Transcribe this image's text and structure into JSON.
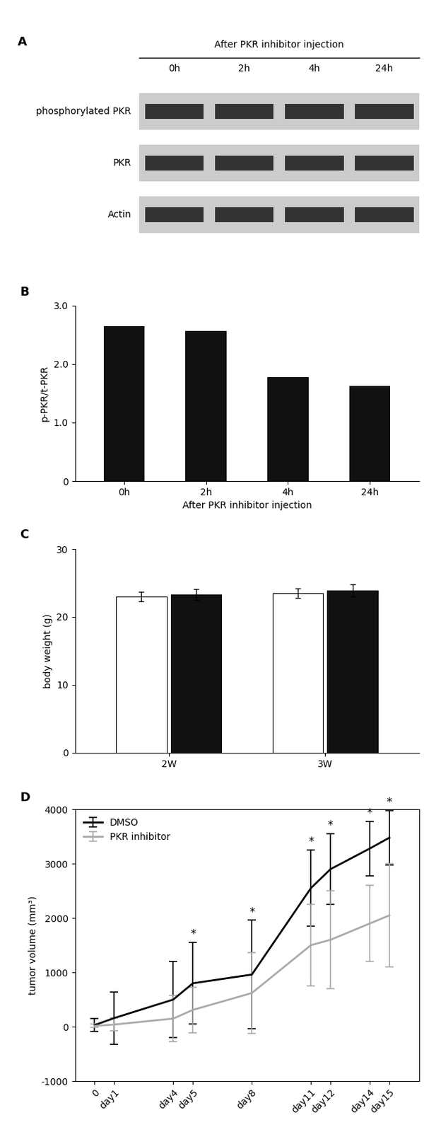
{
  "chart_data": [
    {
      "type": "blot",
      "panel": "A",
      "title": "After PKR inhibitor injection",
      "categories": [
        "0h",
        "2h",
        "4h",
        "24h"
      ],
      "rows": [
        "phosphorylated PKR",
        "PKR",
        "Actin"
      ]
    },
    {
      "type": "bar",
      "panel": "B",
      "categories": [
        "0h",
        "2h",
        "4h",
        "24h"
      ],
      "values": [
        2.65,
        2.57,
        1.78,
        1.63
      ],
      "color": "#111111",
      "ylabel": "p-PKR/t-PKR",
      "xlabel": "After PKR inhibitor injection",
      "ylim": [
        0,
        3.0
      ],
      "yticks": [
        0,
        {
          "value": 1.0,
          "label": "1.0"
        },
        {
          "value": 2.0,
          "label": "2.0"
        },
        {
          "value": 3.0,
          "label": "3.0"
        }
      ]
    },
    {
      "type": "bar",
      "panel": "C",
      "categories": [
        "2W",
        "3W"
      ],
      "series": [
        {
          "color": "#ffffff",
          "values": [
            23.0,
            23.5
          ],
          "errors": [
            0.7,
            0.7
          ]
        },
        {
          "color": "#111111",
          "values": [
            23.3,
            23.9
          ],
          "errors": [
            0.8,
            0.9
          ]
        }
      ],
      "ylabel": "body weight (g)",
      "ylim": [
        0,
        30
      ],
      "yticks": [
        0,
        10,
        20,
        30
      ]
    },
    {
      "type": "line",
      "panel": "D",
      "x": [
        0,
        1,
        4,
        5,
        8,
        11,
        12,
        14,
        15
      ],
      "series": [
        {
          "name": "DMSO",
          "color": "#000000",
          "values": [
            30,
            160,
            500,
            800,
            960,
            2550,
            2900,
            3280,
            3480
          ],
          "errors": [
            120,
            480,
            700,
            750,
            1000,
            700,
            650,
            500,
            500
          ]
        },
        {
          "name": "PKR inhibitor",
          "color": "#aaaaaa",
          "values": [
            15,
            40,
            150,
            310,
            620,
            1500,
            1600,
            1900,
            2050
          ],
          "errors": [
            30,
            120,
            420,
            420,
            750,
            750,
            900,
            700,
            950
          ]
        }
      ],
      "ylabel": "tumor volume (mm³)",
      "xlim": [
        -1.0,
        16.5
      ],
      "xticks": [
        0,
        {
          "value": 1,
          "label": "day1"
        },
        {
          "value": 4,
          "label": "day4"
        },
        {
          "value": 5,
          "label": "day5"
        },
        {
          "value": 8,
          "label": "day8"
        },
        {
          "value": 11,
          "label": "day11"
        },
        {
          "value": 12,
          "label": "day12"
        },
        {
          "value": 14,
          "label": "day14"
        },
        {
          "value": 15,
          "label": "day15"
        }
      ],
      "ylim": [
        -1000,
        4000
      ],
      "yticks": [
        -1000,
        0,
        1000,
        2000,
        3000,
        4000
      ],
      "legend": "upper left",
      "annotations": [
        {
          "x": 5,
          "text": "*"
        },
        {
          "x": 8,
          "text": "*"
        },
        {
          "x": 11,
          "text": "*"
        },
        {
          "x": 12,
          "text": "*"
        },
        {
          "x": 14,
          "text": "*"
        },
        {
          "x": 15,
          "text": "*"
        }
      ]
    }
  ]
}
